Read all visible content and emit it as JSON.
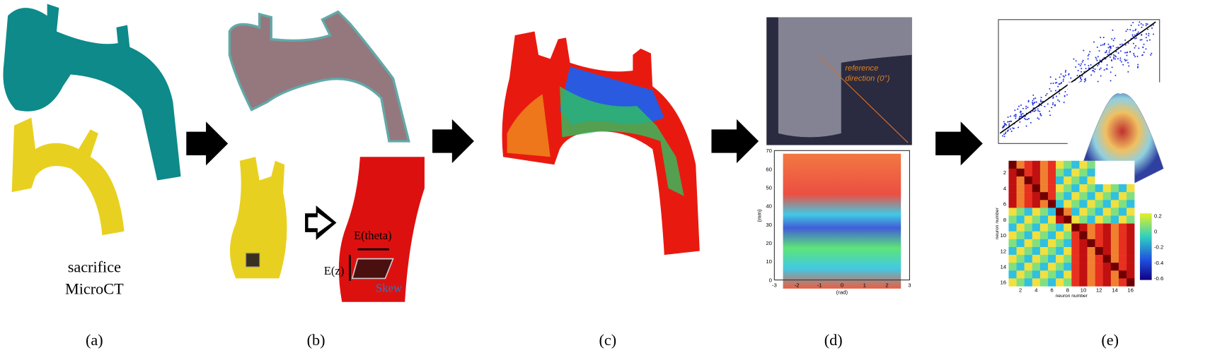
{
  "panels": [
    {
      "label": "(a)",
      "caption": [
        "sacrifice",
        "MicroCT"
      ]
    },
    {
      "label": "(b)",
      "annotations": [
        "E(theta)",
        "E(z)",
        "Skew"
      ]
    },
    {
      "label": "(c)"
    },
    {
      "label": "(d)",
      "annotation": [
        "reference",
        "direction (0°)"
      ],
      "plot": {
        "xlabel": "(rad)",
        "ylabel": "(mm)",
        "xticks": [
          -3,
          -2,
          -1,
          0,
          1,
          2,
          3
        ],
        "yticks": [
          0,
          10,
          20,
          30,
          40,
          50,
          60,
          70
        ]
      }
    },
    {
      "label": "(e)",
      "heatmap": {
        "xlabel": "neuron number",
        "ylabel": "neuron number",
        "xticks": [
          2,
          4,
          6,
          8,
          10,
          12,
          14,
          16
        ],
        "yticks": [
          2,
          4,
          6,
          8,
          10,
          12,
          14,
          16
        ],
        "colorbar_ticks": [
          0.2,
          0,
          -0.2,
          -0.4,
          -0.6
        ]
      }
    }
  ]
}
